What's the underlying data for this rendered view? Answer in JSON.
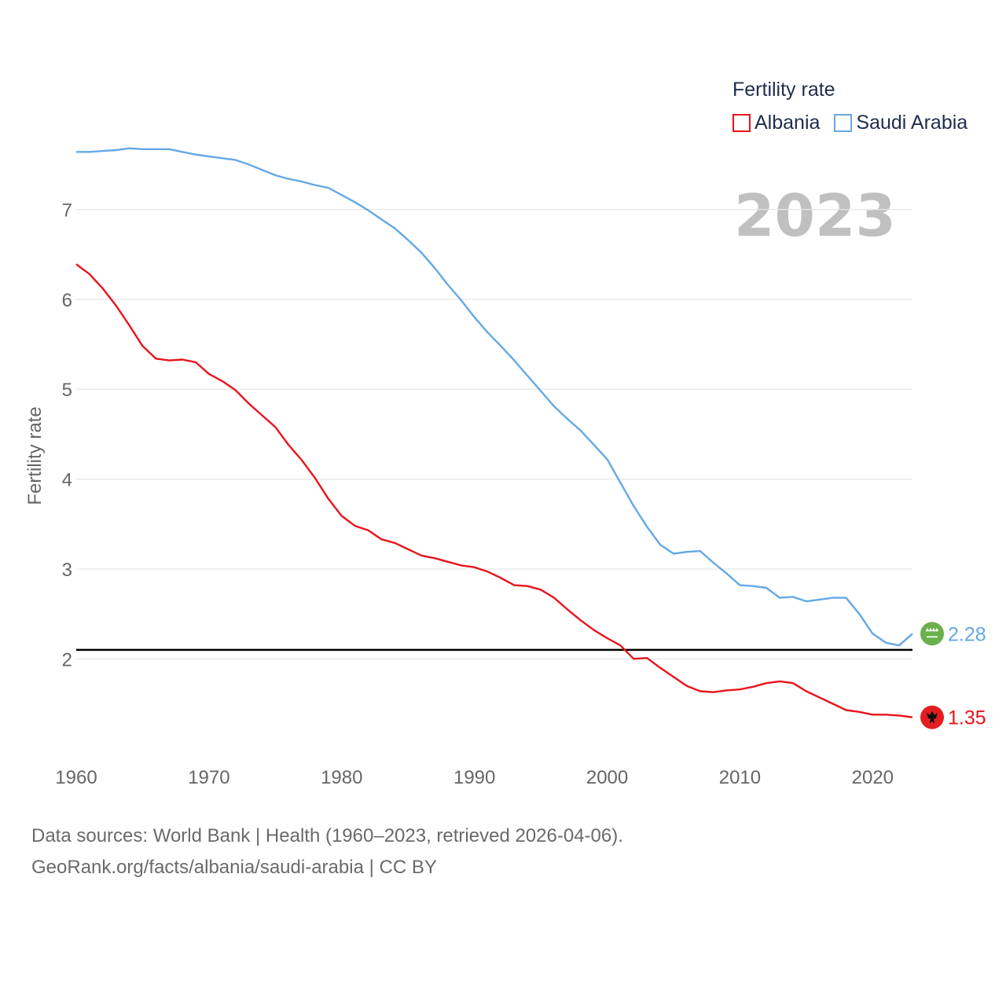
{
  "legend": {
    "title": "Fertility rate",
    "items": [
      {
        "label": "Albania",
        "color": "#e8141c"
      },
      {
        "label": "Saudi Arabia",
        "color": "#64a8e6"
      }
    ]
  },
  "footer": {
    "line1": "Data sources: World Bank | Health (1960–2023, retrieved 2026-04-06).",
    "line2": "GeoRank.org/facts/albania/saudi-arabia | CC BY"
  },
  "chart_data": {
    "type": "line",
    "title": "Fertility rate",
    "year_label": "2023",
    "xlabel": "",
    "ylabel": "Fertility rate",
    "xlim": [
      1960,
      2023
    ],
    "ylim": [
      1.05,
      7.45
    ],
    "x_ticks": [
      1960,
      1970,
      1980,
      1990,
      2000,
      2010,
      2020
    ],
    "y_ticks": [
      2,
      3,
      4,
      5,
      6,
      7
    ],
    "reference_line": 2.1,
    "grid": true,
    "legend_position": "top-right",
    "series": [
      {
        "name": "Albania",
        "color": "#e8141c",
        "end_label": "1.35",
        "flag_icon": "albania-flag-icon",
        "x": [
          1960,
          1961,
          1962,
          1963,
          1964,
          1965,
          1966,
          1967,
          1968,
          1969,
          1970,
          1971,
          1972,
          1973,
          1974,
          1975,
          1976,
          1977,
          1978,
          1979,
          1980,
          1981,
          1982,
          1983,
          1984,
          1985,
          1986,
          1987,
          1988,
          1989,
          1990,
          1991,
          1992,
          1993,
          1994,
          1995,
          1996,
          1997,
          1998,
          1999,
          2000,
          2001,
          2002,
          2003,
          2004,
          2005,
          2006,
          2007,
          2008,
          2009,
          2010,
          2011,
          2012,
          2013,
          2014,
          2015,
          2016,
          2017,
          2018,
          2019,
          2020,
          2021,
          2022,
          2023
        ],
        "values": [
          6.39,
          6.28,
          6.12,
          5.93,
          5.71,
          5.48,
          5.34,
          5.32,
          5.33,
          5.3,
          5.17,
          5.09,
          4.99,
          4.84,
          4.71,
          4.58,
          4.38,
          4.21,
          4.01,
          3.78,
          3.59,
          3.48,
          3.43,
          3.33,
          3.29,
          3.22,
          3.15,
          3.12,
          3.08,
          3.04,
          3.02,
          2.97,
          2.9,
          2.82,
          2.81,
          2.77,
          2.68,
          2.55,
          2.43,
          2.32,
          2.23,
          2.15,
          2.0,
          2.01,
          1.9,
          1.8,
          1.7,
          1.64,
          1.63,
          1.65,
          1.66,
          1.69,
          1.73,
          1.75,
          1.73,
          1.64,
          1.57,
          1.5,
          1.43,
          1.41,
          1.38,
          1.38,
          1.37,
          1.35
        ]
      },
      {
        "name": "Saudi Arabia",
        "color": "#64a8e6",
        "end_label": "2.28",
        "flag_icon": "saudi-arabia-flag-icon",
        "x": [
          1960,
          1961,
          1962,
          1963,
          1964,
          1965,
          1966,
          1967,
          1968,
          1969,
          1970,
          1971,
          1972,
          1973,
          1974,
          1975,
          1976,
          1977,
          1978,
          1979,
          1980,
          1981,
          1982,
          1983,
          1984,
          1985,
          1986,
          1987,
          1988,
          1989,
          1990,
          1991,
          1992,
          1993,
          1994,
          1995,
          1996,
          1997,
          1998,
          1999,
          2000,
          2001,
          2002,
          2003,
          2004,
          2005,
          2006,
          2007,
          2008,
          2009,
          2010,
          2011,
          2012,
          2013,
          2014,
          2015,
          2016,
          2017,
          2018,
          2019,
          2020,
          2021,
          2022,
          2023
        ],
        "values": [
          7.64,
          7.64,
          7.65,
          7.66,
          7.68,
          7.67,
          7.67,
          7.67,
          7.64,
          7.61,
          7.59,
          7.57,
          7.55,
          7.5,
          7.44,
          7.38,
          7.34,
          7.31,
          7.27,
          7.24,
          7.16,
          7.08,
          6.99,
          6.89,
          6.79,
          6.66,
          6.52,
          6.35,
          6.16,
          5.99,
          5.8,
          5.63,
          5.48,
          5.32,
          5.15,
          4.98,
          4.81,
          4.67,
          4.54,
          4.38,
          4.22,
          3.96,
          3.7,
          3.47,
          3.27,
          3.17,
          3.19,
          3.2,
          3.07,
          2.95,
          2.82,
          2.81,
          2.79,
          2.68,
          2.69,
          2.64,
          2.66,
          2.68,
          2.68,
          2.5,
          2.28,
          2.18,
          2.15,
          2.28
        ]
      }
    ]
  }
}
